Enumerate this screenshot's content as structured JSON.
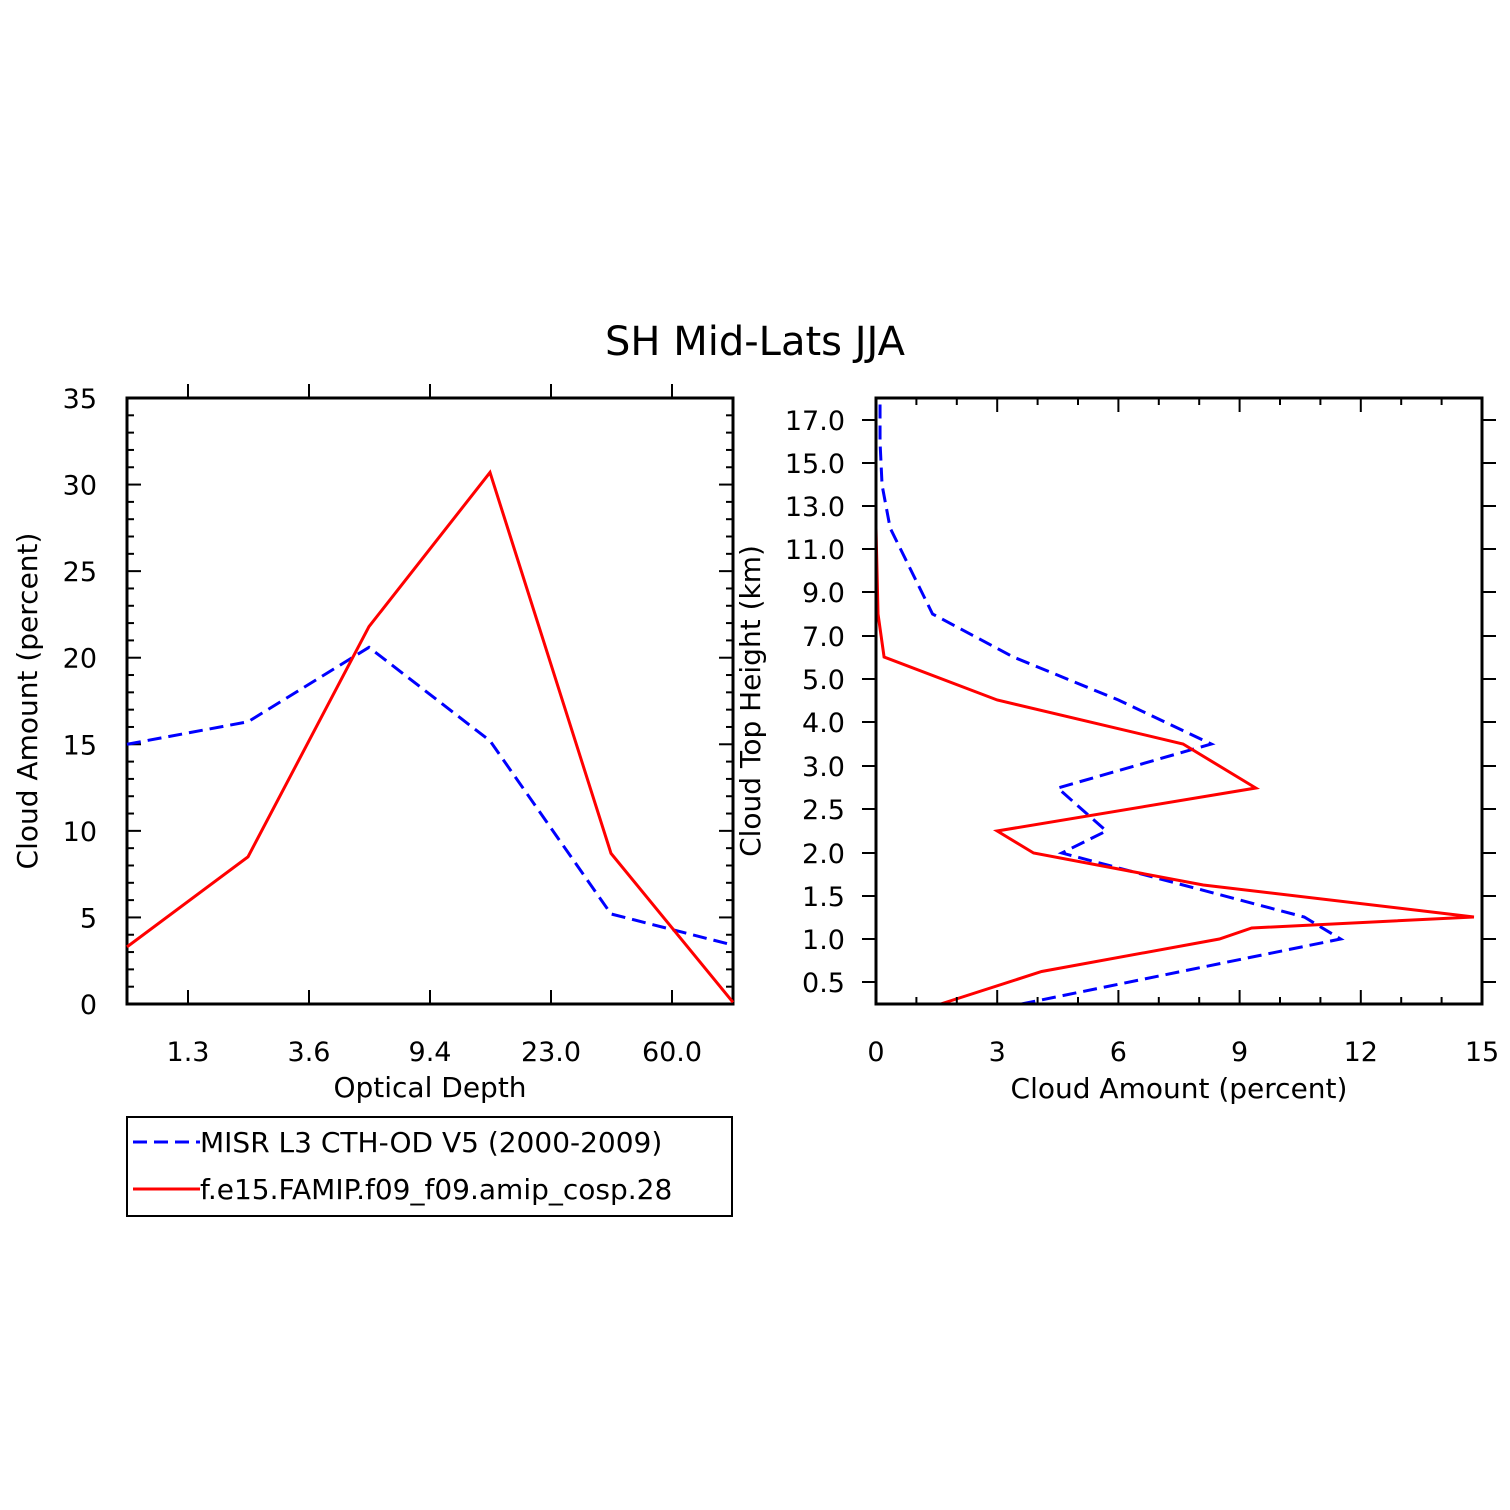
{
  "title": "SH Mid-Lats JJA",
  "chart_data": [
    {
      "type": "line",
      "xlabel": "Optical Depth",
      "ylabel": "Cloud Amount (percent)",
      "ylim": [
        0,
        35
      ],
      "x_ticks": [
        "1.3",
        "3.6",
        "9.4",
        "23.0",
        "60.0"
      ],
      "y_ticks": [
        "0",
        "5",
        "10",
        "15",
        "20",
        "25",
        "30",
        "35"
      ],
      "series": [
        {
          "name": "MISR L3 CTH-OD V5 (2000-2009)",
          "color": "#0000ff",
          "style": "dashed",
          "points": [
            [
              0,
              15.0
            ],
            [
              1,
              16.3
            ],
            [
              2,
              20.6
            ],
            [
              3,
              15.2
            ],
            [
              4,
              5.2
            ],
            [
              5,
              3.4
            ]
          ]
        },
        {
          "name": "f.e15.FAMIP.f09_f09.amip_cosp.28",
          "color": "#ff0000",
          "style": "solid",
          "points": [
            [
              0,
              3.3
            ],
            [
              1,
              8.5
            ],
            [
              2,
              21.8
            ],
            [
              3,
              30.7
            ],
            [
              4,
              8.7
            ],
            [
              5,
              0.1
            ]
          ]
        }
      ]
    },
    {
      "type": "line",
      "xlabel": "Cloud Amount (percent)",
      "ylabel": "Cloud Top Height (km)",
      "xlim": [
        0,
        15
      ],
      "x_ticks": [
        "0",
        "3",
        "6",
        "9",
        "12",
        "15"
      ],
      "y_ticks": [
        "0.5",
        "1.0",
        "1.5",
        "2.0",
        "2.5",
        "3.0",
        "4.0",
        "5.0",
        "7.0",
        "9.0",
        "11.0",
        "13.0",
        "15.0",
        "17.0"
      ],
      "series": [
        {
          "name": "MISR L3 CTH-OD V5 (2000-2009)",
          "color": "#0000ff",
          "style": "dashed",
          "points": [
            [
              3.6,
              0
            ],
            [
              11.5,
              1
            ],
            [
              10.6,
              2
            ],
            [
              4.6,
              3
            ],
            [
              5.7,
              4
            ],
            [
              4.5,
              5
            ],
            [
              8.3,
              6
            ],
            [
              6.0,
              7
            ],
            [
              3.4,
              8
            ],
            [
              1.4,
              9
            ],
            [
              0.35,
              10
            ],
            [
              0.15,
              11
            ],
            [
              0.1,
              12
            ],
            [
              0.1,
              13
            ]
          ]
        },
        {
          "name": "f.e15.FAMIP.f09_f09.amip_cosp.28",
          "color": "#ff0000",
          "style": "solid",
          "points": [
            [
              1.6,
              0
            ],
            [
              4.1,
              0.5
            ],
            [
              8.5,
              1
            ],
            [
              9.3,
              1.5
            ],
            [
              14.8,
              2
            ],
            [
              8.1,
              2.5
            ],
            [
              3.9,
              3
            ],
            [
              3.0,
              4
            ],
            [
              9.4,
              5
            ],
            [
              7.6,
              6
            ],
            [
              3.0,
              7
            ],
            [
              0.2,
              8
            ],
            [
              0.05,
              9
            ],
            [
              0.0,
              10
            ]
          ]
        }
      ]
    }
  ],
  "legend": {
    "items": [
      {
        "label": "MISR L3 CTH-OD V5 (2000-2009)",
        "color": "#0000ff",
        "style": "dashed"
      },
      {
        "label": "f.e15.FAMIP.f09_f09.amip_cosp.28",
        "color": "#ff0000",
        "style": "solid"
      }
    ]
  }
}
